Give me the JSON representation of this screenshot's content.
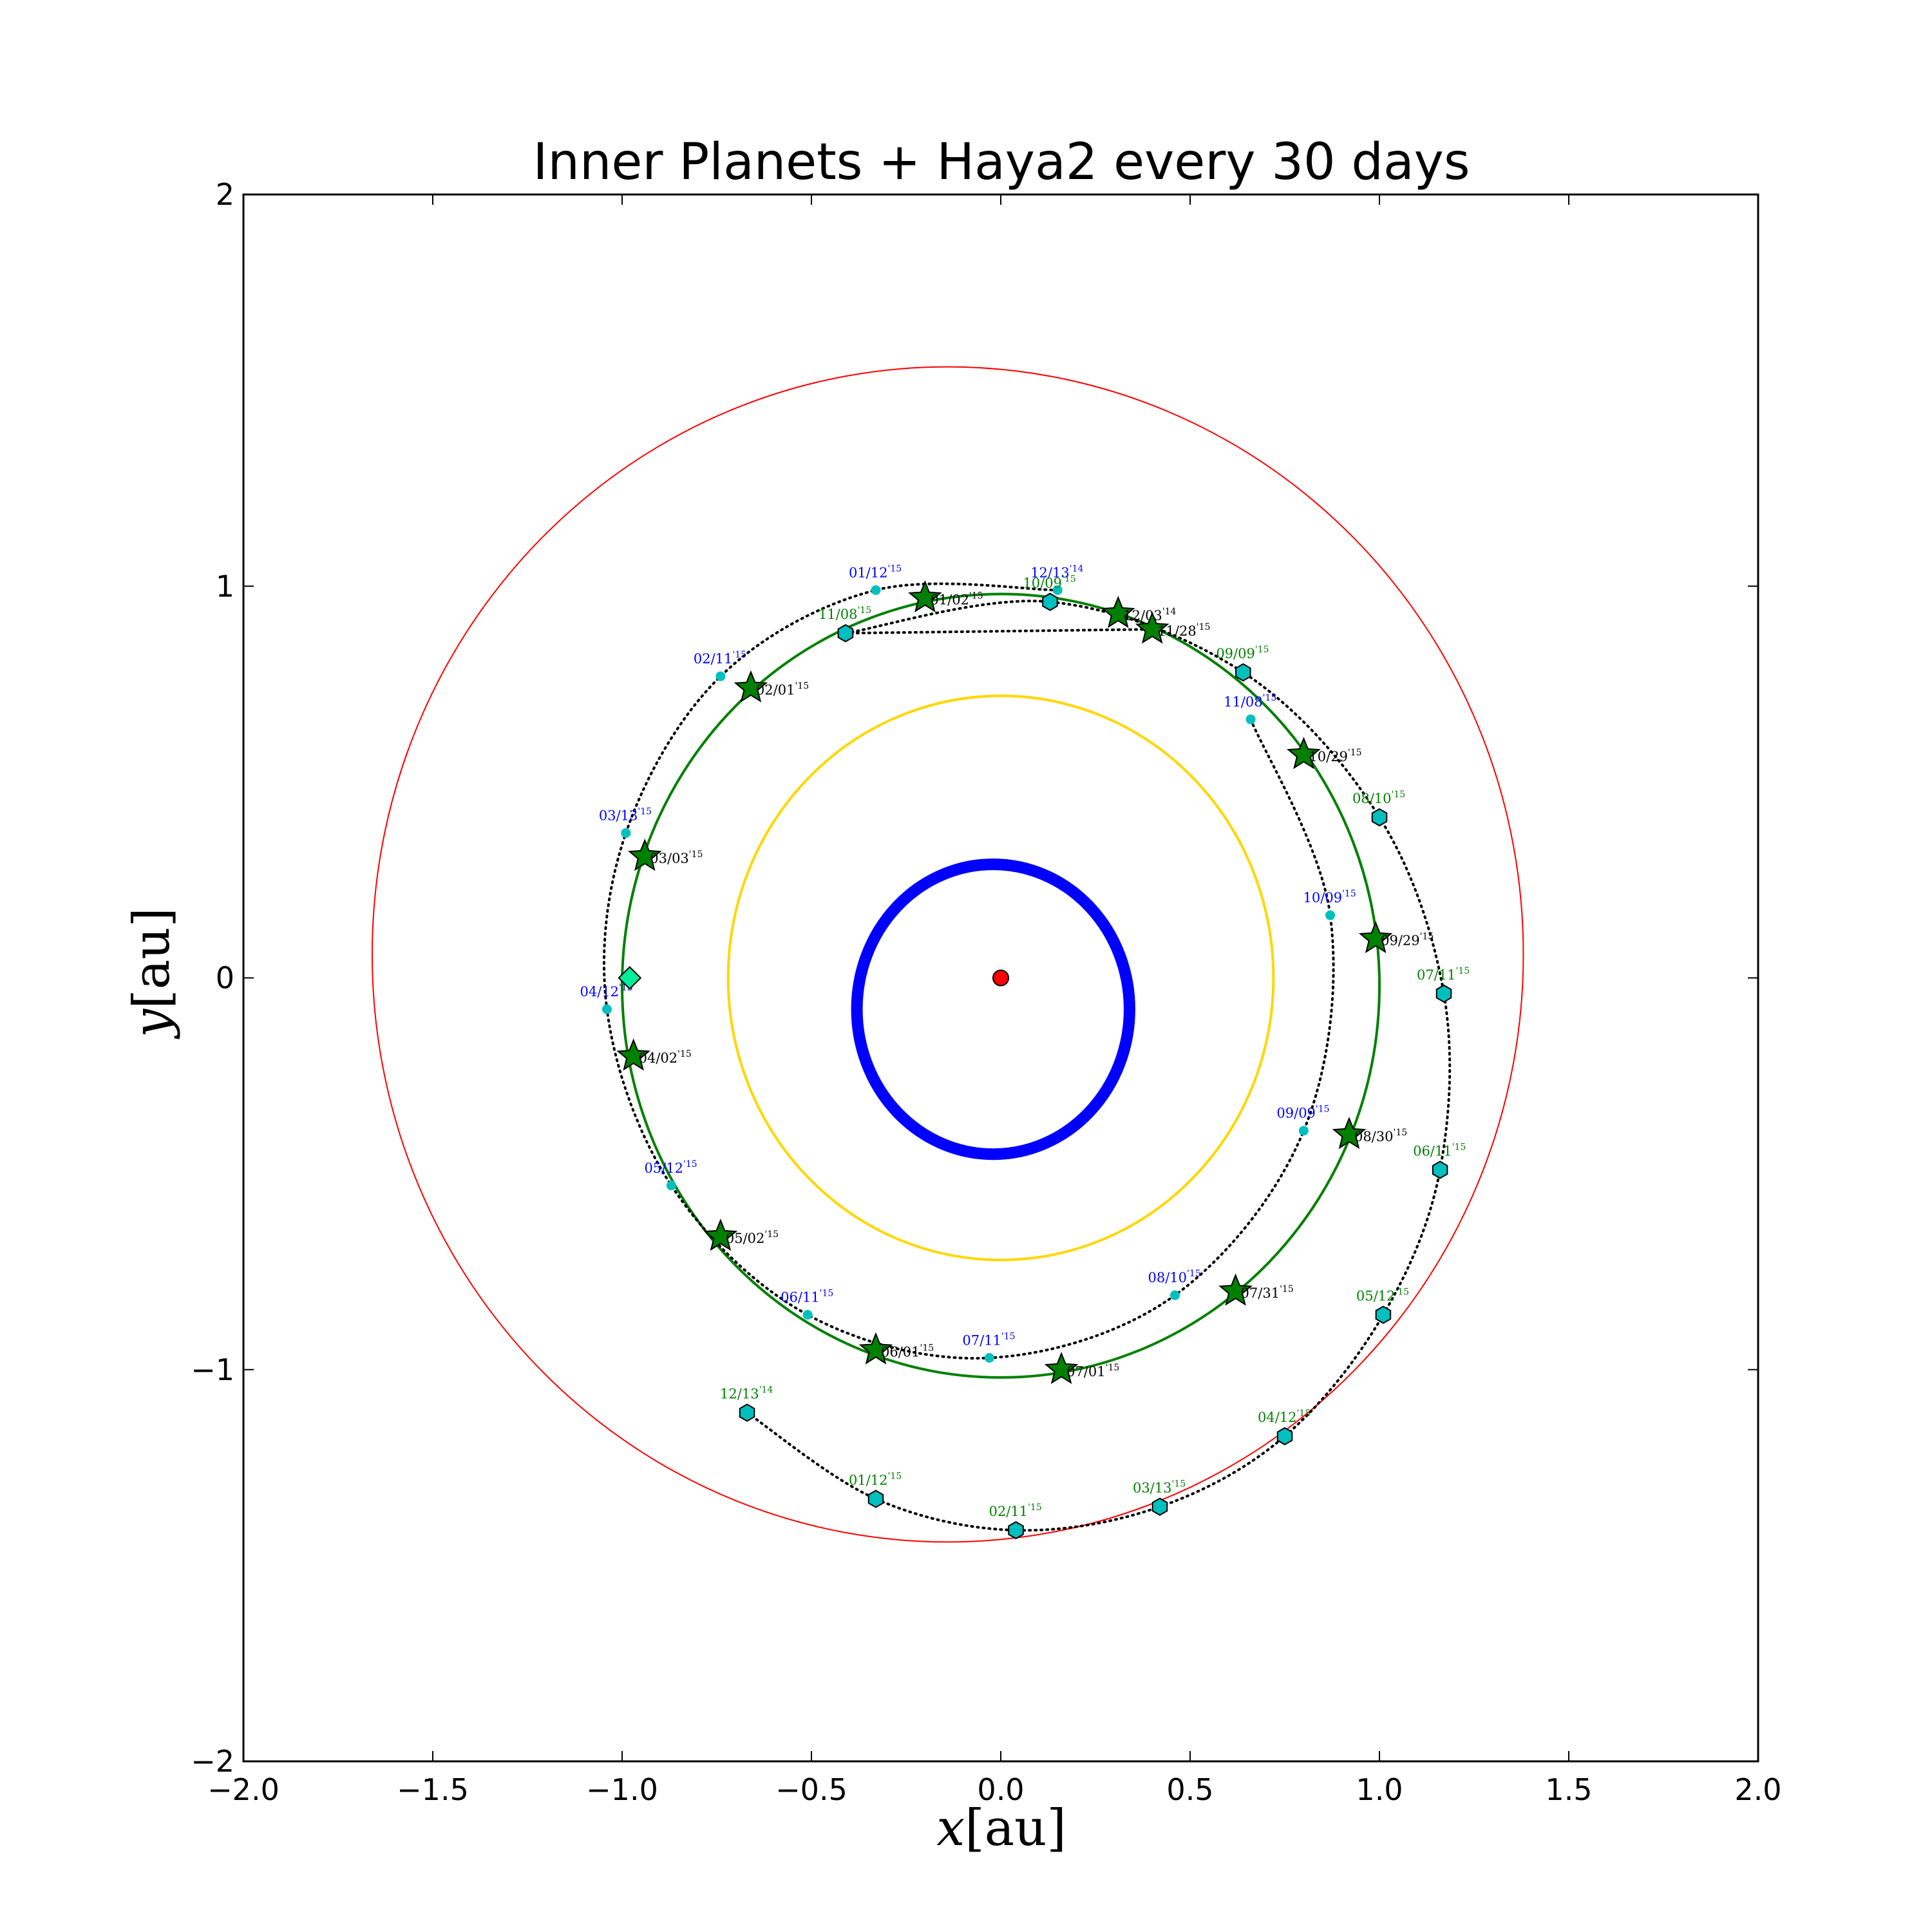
{
  "chart_data": {
    "type": "scatter",
    "title": "Inner Planets + Haya2 every 30 days",
    "xlabel": {
      "var": "x",
      "unit": "[au]"
    },
    "ylabel": {
      "var": "y",
      "unit": "[au]"
    },
    "xlim": [
      -2.0,
      2.0
    ],
    "ylim": [
      -2.0,
      2.0
    ],
    "xticks": [
      -2.0,
      -1.5,
      -1.0,
      -0.5,
      0.0,
      0.5,
      1.0,
      1.5,
      2.0
    ],
    "xtick_labels": [
      "−2.0",
      "−1.5",
      "−1.0",
      "−0.5",
      "0.0",
      "0.5",
      "1.0",
      "1.5",
      "2.0"
    ],
    "yticks": [
      -2,
      -1,
      0,
      1,
      2
    ],
    "ytick_labels": [
      "−2",
      "−1",
      "0",
      "1",
      "2"
    ],
    "grid": false,
    "legend": "none",
    "colors": {
      "sun": "#ff0000",
      "mercury": "#0000ff",
      "venus": "#ffd700",
      "earth_orbit": "#008000",
      "earth_marker": "#008000",
      "mars_orbit": "#ff0000",
      "track_dots": "#000000",
      "cyan_marker": "#00bfbf",
      "diamond": "#00ee99",
      "blue_label": "#0000ff",
      "green_label": "#008000",
      "black_label": "#000000"
    },
    "sun": {
      "x": 0.0,
      "y": 0.0
    },
    "orbits": [
      {
        "body": "mercury",
        "cx": -0.02,
        "cy": -0.08,
        "rx": 0.36,
        "ry": 0.37,
        "style": "thick"
      },
      {
        "body": "venus",
        "cx": 0.0,
        "cy": 0.0,
        "rx": 0.72,
        "ry": 0.72,
        "style": "solid"
      },
      {
        "body": "earth",
        "cx": 0.0,
        "cy": -0.02,
        "rx": 1.0,
        "ry": 1.0,
        "style": "solid"
      },
      {
        "body": "mars",
        "cx": -0.14,
        "cy": 0.06,
        "rx": 1.52,
        "ry": 1.5,
        "style": "thin"
      }
    ],
    "earth_positions": [
      {
        "date": "12/03",
        "yr": "'14",
        "x": 0.31,
        "y": 0.93
      },
      {
        "date": "01/02",
        "yr": "'15",
        "x": -0.2,
        "y": 0.97
      },
      {
        "date": "02/01",
        "yr": "'15",
        "x": -0.66,
        "y": 0.74
      },
      {
        "date": "03/03",
        "yr": "'15",
        "x": -0.94,
        "y": 0.31
      },
      {
        "date": "04/02",
        "yr": "'15",
        "x": -0.97,
        "y": -0.2
      },
      {
        "date": "05/02",
        "yr": "'15",
        "x": -0.74,
        "y": -0.66
      },
      {
        "date": "06/01",
        "yr": "'15",
        "x": -0.33,
        "y": -0.95
      },
      {
        "date": "07/01",
        "yr": "'15",
        "x": 0.16,
        "y": -1.0
      },
      {
        "date": "07/31",
        "yr": "'15",
        "x": 0.62,
        "y": -0.8
      },
      {
        "date": "08/30",
        "yr": "'15",
        "x": 0.92,
        "y": -0.4
      },
      {
        "date": "09/29",
        "yr": "'15",
        "x": 0.99,
        "y": 0.1
      },
      {
        "date": "10/29",
        "yr": "'15",
        "x": 0.8,
        "y": 0.57
      },
      {
        "date": "11/28",
        "yr": "'15",
        "x": 0.4,
        "y": 0.89
      }
    ],
    "haya2_inner_positions": [
      {
        "date": "12/13",
        "yr": "'14",
        "x": 0.15,
        "y": 0.99
      },
      {
        "date": "01/12",
        "yr": "'15",
        "x": -0.33,
        "y": 0.99
      },
      {
        "date": "02/11",
        "yr": "'15",
        "x": -0.74,
        "y": 0.77
      },
      {
        "date": "03/13",
        "yr": "'15",
        "x": -0.99,
        "y": 0.37
      },
      {
        "date": "04/12",
        "yr": "'15",
        "x": -1.04,
        "y": -0.08
      },
      {
        "date": "05/12",
        "yr": "'15",
        "x": -0.87,
        "y": -0.53
      },
      {
        "date": "06/11",
        "yr": "'15",
        "x": -0.51,
        "y": -0.86
      },
      {
        "date": "07/11",
        "yr": "'15",
        "x": -0.03,
        "y": -0.97
      },
      {
        "date": "08/10",
        "yr": "'15",
        "x": 0.46,
        "y": -0.81
      },
      {
        "date": "09/09",
        "yr": "'15",
        "x": 0.8,
        "y": -0.39
      },
      {
        "date": "10/09",
        "yr": "'15",
        "x": 0.87,
        "y": 0.16
      },
      {
        "date": "11/08",
        "yr": "'15",
        "x": 0.66,
        "y": 0.66
      }
    ],
    "haya2_outer_positions": [
      {
        "date": "12/13",
        "yr": "'14",
        "x": -0.67,
        "y": -1.11
      },
      {
        "date": "01/12",
        "yr": "'15",
        "x": -0.33,
        "y": -1.33
      },
      {
        "date": "02/11",
        "yr": "'15",
        "x": 0.04,
        "y": -1.41
      },
      {
        "date": "03/13",
        "yr": "'15",
        "x": 0.42,
        "y": -1.35
      },
      {
        "date": "04/12",
        "yr": "'15",
        "x": 0.75,
        "y": -1.17
      },
      {
        "date": "05/12",
        "yr": "'15",
        "x": 1.01,
        "y": -0.86
      },
      {
        "date": "06/11",
        "yr": "'15",
        "x": 1.16,
        "y": -0.49
      },
      {
        "date": "07/11",
        "yr": "'15",
        "x": 1.17,
        "y": -0.04
      },
      {
        "date": "08/10",
        "yr": "'15",
        "x": 1.0,
        "y": 0.41
      },
      {
        "date": "09/09",
        "yr": "'15",
        "x": 0.64,
        "y": 0.78
      },
      {
        "date": "10/09",
        "yr": "'15",
        "x": 0.13,
        "y": 0.96
      },
      {
        "date": "11/08",
        "yr": "'15",
        "x": -0.41,
        "y": 0.88
      }
    ],
    "diamond": {
      "x": -0.98,
      "y": 0.0
    }
  }
}
